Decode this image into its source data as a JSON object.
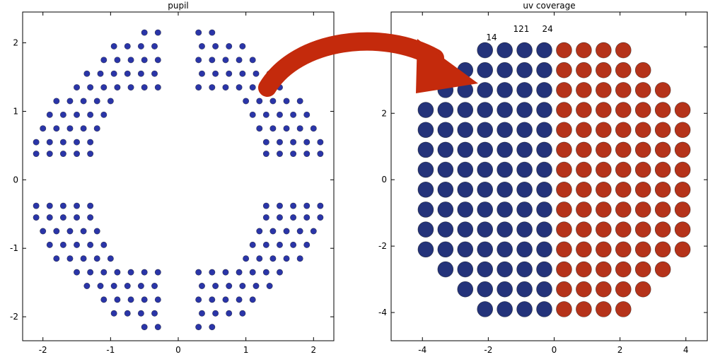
{
  "chart_data": [
    {
      "type": "scatter",
      "title": "pupil",
      "color": "#2a35a8",
      "xlim": [
        -2.3,
        2.3
      ],
      "ylim": [
        -2.35,
        2.45
      ],
      "xticks": [
        -2,
        -1,
        0,
        1,
        2
      ],
      "yticks": [
        -2,
        -1,
        0,
        1,
        2
      ],
      "x": [
        0.3,
        0.5,
        0.35,
        0.55,
        0.75,
        0.95,
        0.3,
        0.5,
        0.7,
        0.9,
        1.1,
        0.35,
        0.55,
        0.75,
        0.95,
        1.15,
        1.35,
        0.3,
        0.5,
        0.7,
        0.9,
        1.1,
        1.3,
        1.5,
        1.0,
        1.2,
        1.4,
        1.6,
        1.8,
        1.1,
        1.3,
        1.5,
        1.7,
        1.9,
        1.2,
        1.4,
        1.6,
        1.8,
        2.0,
        1.3,
        1.5,
        1.7,
        1.9,
        2.1,
        1.3,
        1.5,
        1.7,
        1.9,
        2.1,
        -0.3,
        -0.5,
        -0.35,
        -0.55,
        -0.75,
        -0.95,
        -0.3,
        -0.5,
        -0.7,
        -0.9,
        -1.1,
        -0.35,
        -0.55,
        -0.75,
        -0.95,
        -1.15,
        -1.35,
        -0.3,
        -0.5,
        -0.7,
        -0.9,
        -1.1,
        -1.3,
        -1.5,
        -1.0,
        -1.2,
        -1.4,
        -1.6,
        -1.8,
        -1.1,
        -1.3,
        -1.5,
        -1.7,
        -1.9,
        -1.2,
        -1.4,
        -1.6,
        -1.8,
        -2.0,
        -1.3,
        -1.5,
        -1.7,
        -1.9,
        -2.1,
        -1.3,
        -1.5,
        -1.7,
        -1.9,
        -2.1,
        -0.3,
        -0.5,
        -0.35,
        -0.55,
        -0.75,
        -0.95,
        -0.3,
        -0.5,
        -0.7,
        -0.9,
        -1.1,
        -0.35,
        -0.55,
        -0.75,
        -0.95,
        -1.15,
        -1.35,
        -0.3,
        -0.5,
        -0.7,
        -0.9,
        -1.1,
        -1.3,
        -1.5,
        -1.0,
        -1.2,
        -1.4,
        -1.6,
        -1.8,
        -1.1,
        -1.3,
        -1.5,
        -1.7,
        -1.9,
        -1.2,
        -1.4,
        -1.6,
        -1.8,
        -2.0,
        -1.3,
        -1.5,
        -1.7,
        -1.9,
        -2.1,
        -1.3,
        -1.5,
        -1.7,
        -1.9,
        -2.1,
        0.3,
        0.5,
        0.35,
        0.55,
        0.75,
        0.95,
        0.3,
        0.5,
        0.7,
        0.9,
        1.1,
        0.35,
        0.55,
        0.75,
        0.95,
        1.15,
        1.35,
        0.3,
        0.5,
        0.7,
        0.9,
        1.1,
        1.3,
        1.5,
        1.0,
        1.2,
        1.4,
        1.6,
        1.8,
        1.1,
        1.3,
        1.5,
        1.7,
        1.9,
        1.2,
        1.4,
        1.6,
        1.8,
        2.0,
        1.3,
        1.5,
        1.7,
        1.9,
        2.1,
        1.3,
        1.5,
        1.7,
        1.9,
        2.1
      ],
      "y": [
        2.15,
        2.15,
        1.95,
        1.95,
        1.95,
        1.95,
        1.75,
        1.75,
        1.75,
        1.75,
        1.75,
        1.55,
        1.55,
        1.55,
        1.55,
        1.55,
        1.55,
        1.35,
        1.35,
        1.35,
        1.35,
        1.35,
        1.35,
        1.35,
        1.15,
        1.15,
        1.15,
        1.15,
        1.15,
        0.95,
        0.95,
        0.95,
        0.95,
        0.95,
        0.75,
        0.75,
        0.75,
        0.75,
        0.75,
        0.55,
        0.55,
        0.55,
        0.55,
        0.55,
        0.38,
        0.38,
        0.38,
        0.38,
        0.38,
        2.15,
        2.15,
        1.95,
        1.95,
        1.95,
        1.95,
        1.75,
        1.75,
        1.75,
        1.75,
        1.75,
        1.55,
        1.55,
        1.55,
        1.55,
        1.55,
        1.55,
        1.35,
        1.35,
        1.35,
        1.35,
        1.35,
        1.35,
        1.35,
        1.15,
        1.15,
        1.15,
        1.15,
        1.15,
        0.95,
        0.95,
        0.95,
        0.95,
        0.95,
        0.75,
        0.75,
        0.75,
        0.75,
        0.75,
        0.55,
        0.55,
        0.55,
        0.55,
        0.55,
        0.38,
        0.38,
        0.38,
        0.38,
        0.38,
        -2.15,
        -2.15,
        -1.95,
        -1.95,
        -1.95,
        -1.95,
        -1.75,
        -1.75,
        -1.75,
        -1.75,
        -1.75,
        -1.55,
        -1.55,
        -1.55,
        -1.55,
        -1.55,
        -1.55,
        -1.35,
        -1.35,
        -1.35,
        -1.35,
        -1.35,
        -1.35,
        -1.35,
        -1.15,
        -1.15,
        -1.15,
        -1.15,
        -1.15,
        -0.95,
        -0.95,
        -0.95,
        -0.95,
        -0.95,
        -0.75,
        -0.75,
        -0.75,
        -0.75,
        -0.75,
        -0.55,
        -0.55,
        -0.55,
        -0.55,
        -0.55,
        -0.38,
        -0.38,
        -0.38,
        -0.38,
        -0.38,
        -2.15,
        -2.15,
        -1.95,
        -1.95,
        -1.95,
        -1.95,
        -1.75,
        -1.75,
        -1.75,
        -1.75,
        -1.75,
        -1.55,
        -1.55,
        -1.55,
        -1.55,
        -1.55,
        -1.55,
        -1.35,
        -1.35,
        -1.35,
        -1.35,
        -1.35,
        -1.35,
        -1.35,
        -1.15,
        -1.15,
        -1.15,
        -1.15,
        -1.15,
        -0.95,
        -0.95,
        -0.95,
        -0.95,
        -0.95,
        -0.75,
        -0.75,
        -0.75,
        -0.75,
        -0.75,
        -0.55,
        -0.55,
        -0.55,
        -0.55,
        -0.55,
        -0.38,
        -0.38,
        -0.38,
        -0.38,
        -0.38
      ]
    },
    {
      "type": "scatter",
      "title": "uv coverage",
      "xlim": [
        -4.95,
        4.65
      ],
      "ylim": [
        -4.85,
        5.05
      ],
      "xticks": [
        -4,
        -2,
        0,
        2,
        4
      ],
      "yticks": [
        -4,
        -2,
        0,
        2,
        4
      ],
      "series": [
        {
          "color": "#24337a",
          "x": [
            -0.3,
            -0.3,
            -0.3,
            -0.3,
            -0.3,
            -0.3,
            -0.3,
            -0.3,
            -0.3,
            -0.3,
            -0.3,
            -0.3,
            -0.3,
            -0.3,
            -0.9,
            -0.9,
            -0.9,
            -0.9,
            -0.9,
            -0.9,
            -0.9,
            -0.9,
            -0.9,
            -0.9,
            -0.9,
            -0.9,
            -0.9,
            -0.9,
            -1.5,
            -1.5,
            -1.5,
            -1.5,
            -1.5,
            -1.5,
            -1.5,
            -1.5,
            -1.5,
            -1.5,
            -1.5,
            -1.5,
            -1.5,
            -1.5,
            -2.1,
            -2.1,
            -2.1,
            -2.1,
            -2.1,
            -2.1,
            -2.1,
            -2.1,
            -2.1,
            -2.1,
            -2.1,
            -2.1,
            -2.1,
            -2.1,
            -2.7,
            -2.7,
            -2.7,
            -2.7,
            -2.7,
            -2.7,
            -2.7,
            -2.7,
            -2.7,
            -2.7,
            -2.7,
            -2.7,
            -3.3,
            -3.3,
            -3.3,
            -3.3,
            -3.3,
            -3.3,
            -3.3,
            -3.3,
            -3.3,
            -3.3,
            -3.9,
            -3.9,
            -3.9,
            -3.9,
            -3.9,
            -3.9,
            -3.9,
            -3.9
          ],
          "y": [
            3.9,
            3.3,
            2.7,
            2.1,
            1.5,
            0.9,
            0.3,
            -0.3,
            -0.9,
            -1.5,
            -2.1,
            -2.7,
            -3.3,
            -3.9,
            3.9,
            3.3,
            2.7,
            2.1,
            1.5,
            0.9,
            0.3,
            -0.3,
            -0.9,
            -1.5,
            -2.1,
            -2.7,
            -3.3,
            -3.9,
            3.9,
            3.3,
            2.7,
            2.1,
            1.5,
            0.9,
            0.3,
            -0.3,
            -0.9,
            -1.5,
            -2.1,
            -2.7,
            -3.3,
            -3.9,
            3.9,
            3.3,
            2.7,
            2.1,
            1.5,
            0.9,
            0.3,
            -0.3,
            -0.9,
            -1.5,
            -2.1,
            -2.7,
            -3.3,
            -3.9,
            3.3,
            2.7,
            2.1,
            1.5,
            0.9,
            0.3,
            -0.3,
            -0.9,
            -1.5,
            -2.1,
            -2.7,
            -3.3,
            2.7,
            2.1,
            1.5,
            0.9,
            0.3,
            -0.3,
            -0.9,
            -1.5,
            -2.1,
            -2.7,
            2.1,
            1.5,
            0.9,
            0.3,
            -0.3,
            -0.9,
            -1.5,
            -2.1
          ]
        },
        {
          "color": "#b5331a",
          "x": [
            0.3,
            0.3,
            0.3,
            0.3,
            0.3,
            0.3,
            0.3,
            0.3,
            0.3,
            0.3,
            0.3,
            0.3,
            0.3,
            0.3,
            0.9,
            0.9,
            0.9,
            0.9,
            0.9,
            0.9,
            0.9,
            0.9,
            0.9,
            0.9,
            0.9,
            0.9,
            0.9,
            0.9,
            1.5,
            1.5,
            1.5,
            1.5,
            1.5,
            1.5,
            1.5,
            1.5,
            1.5,
            1.5,
            1.5,
            1.5,
            1.5,
            1.5,
            2.1,
            2.1,
            2.1,
            2.1,
            2.1,
            2.1,
            2.1,
            2.1,
            2.1,
            2.1,
            2.1,
            2.1,
            2.1,
            2.1,
            2.7,
            2.7,
            2.7,
            2.7,
            2.7,
            2.7,
            2.7,
            2.7,
            2.7,
            2.7,
            2.7,
            2.7,
            3.3,
            3.3,
            3.3,
            3.3,
            3.3,
            3.3,
            3.3,
            3.3,
            3.3,
            3.3,
            3.9,
            3.9,
            3.9,
            3.9,
            3.9,
            3.9,
            3.9,
            3.9
          ],
          "y": [
            3.9,
            3.3,
            2.7,
            2.1,
            1.5,
            0.9,
            0.3,
            -0.3,
            -0.9,
            -1.5,
            -2.1,
            -2.7,
            -3.3,
            -3.9,
            3.9,
            3.3,
            2.7,
            2.1,
            1.5,
            0.9,
            0.3,
            -0.3,
            -0.9,
            -1.5,
            -2.1,
            -2.7,
            -3.3,
            -3.9,
            3.9,
            3.3,
            2.7,
            2.1,
            1.5,
            0.9,
            0.3,
            -0.3,
            -0.9,
            -1.5,
            -2.1,
            -2.7,
            -3.3,
            -3.9,
            3.9,
            3.3,
            2.7,
            2.1,
            1.5,
            0.9,
            0.3,
            -0.3,
            -0.9,
            -1.5,
            -2.1,
            -2.7,
            -3.3,
            -3.9,
            3.3,
            2.7,
            2.1,
            1.5,
            0.9,
            0.3,
            -0.3,
            -0.9,
            -1.5,
            -2.1,
            -2.7,
            -3.3,
            2.7,
            2.1,
            1.5,
            0.9,
            0.3,
            -0.3,
            -0.9,
            -1.5,
            -2.1,
            -2.7,
            2.1,
            1.5,
            0.9,
            0.3,
            -0.3,
            -0.9,
            -1.5,
            -2.1
          ]
        }
      ],
      "annotations": [
        {
          "text": "121",
          "x": -1.0,
          "y": 4.45
        },
        {
          "text": "24",
          "x": -0.2,
          "y": 4.45
        },
        {
          "text": "14",
          "x": -1.9,
          "y": 4.2
        }
      ]
    }
  ]
}
